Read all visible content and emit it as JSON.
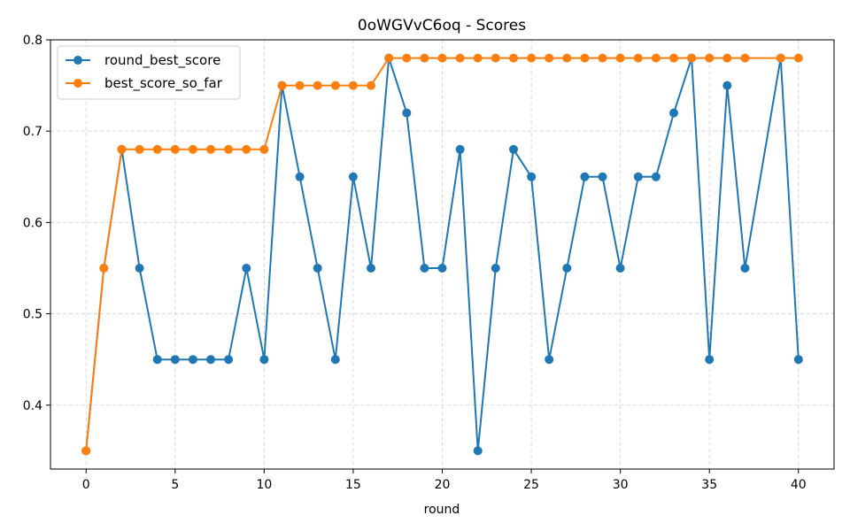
{
  "chart_data": {
    "type": "line",
    "title": "0oWGVvC6oq - Scores",
    "xlabel": "round",
    "ylabel": "",
    "xlim": [
      -2,
      42
    ],
    "ylim": [
      0.33,
      0.8
    ],
    "xticks": [
      0,
      5,
      10,
      15,
      20,
      25,
      30,
      35,
      40
    ],
    "yticks": [
      0.4,
      0.5,
      0.6,
      0.7,
      0.8
    ],
    "grid": true,
    "legend_position": "top-left",
    "x": [
      0,
      1,
      2,
      3,
      4,
      5,
      6,
      7,
      8,
      9,
      10,
      11,
      12,
      13,
      14,
      15,
      16,
      17,
      18,
      19,
      20,
      21,
      22,
      23,
      24,
      25,
      26,
      27,
      28,
      29,
      30,
      31,
      32,
      33,
      34,
      35,
      36,
      37,
      38,
      39,
      40
    ],
    "series": [
      {
        "name": "round_best_score",
        "color": "#1f77b4",
        "values": [
          0.35,
          0.55,
          0.68,
          0.55,
          0.45,
          0.45,
          0.45,
          0.45,
          0.45,
          0.55,
          0.45,
          0.75,
          0.65,
          0.55,
          0.45,
          0.65,
          0.55,
          0.78,
          0.72,
          0.55,
          0.55,
          0.68,
          0.35,
          0.55,
          0.68,
          0.65,
          0.45,
          0.55,
          0.65,
          0.65,
          0.55,
          0.65,
          0.65,
          0.72,
          0.78,
          0.45,
          0.75,
          0.55,
          null,
          0.78,
          0.45
        ]
      },
      {
        "name": "best_score_so_far",
        "color": "#ff7f0e",
        "values": [
          0.35,
          0.55,
          0.68,
          0.68,
          0.68,
          0.68,
          0.68,
          0.68,
          0.68,
          0.68,
          0.68,
          0.75,
          0.75,
          0.75,
          0.75,
          0.75,
          0.75,
          0.78,
          0.78,
          0.78,
          0.78,
          0.78,
          0.78,
          0.78,
          0.78,
          0.78,
          0.78,
          0.78,
          0.78,
          0.78,
          0.78,
          0.78,
          0.78,
          0.78,
          0.78,
          0.78,
          0.78,
          0.78,
          null,
          0.78,
          0.78
        ]
      }
    ]
  }
}
